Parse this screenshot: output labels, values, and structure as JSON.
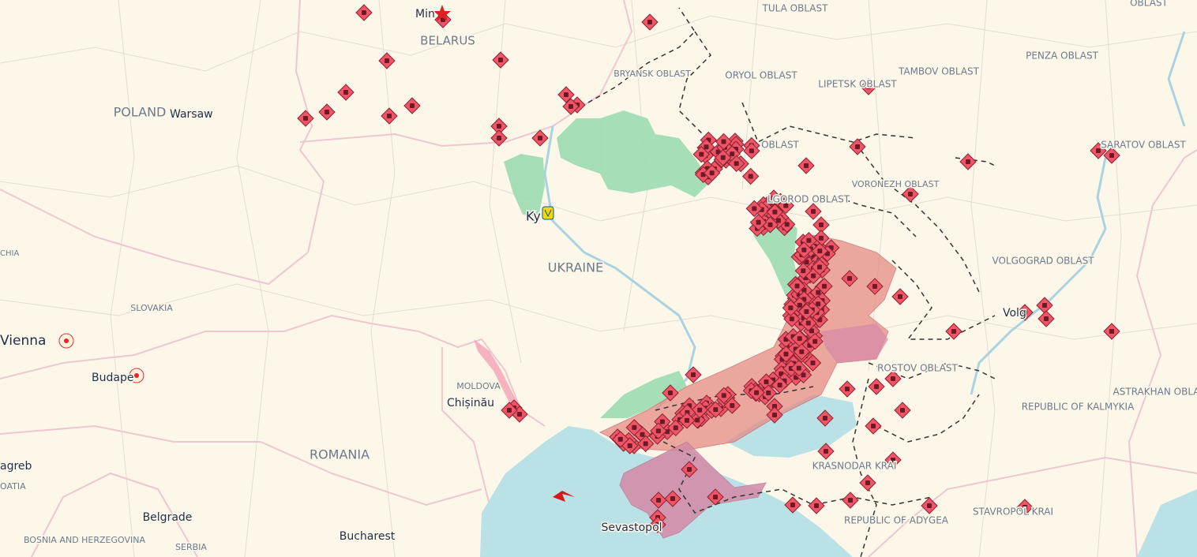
{
  "labels": [
    "TULA OBLAST",
    "Min",
    "BELARUS",
    "BRYANSK OBLAST",
    "ORYOL OBLAST",
    "LIPETSK OBLAST",
    "TAMBOV OBLAST",
    "PENZA OBLAST",
    "OBLAST",
    "POLAND",
    "Warsaw",
    "OBLAST",
    "VORONEZH OBLAST",
    "LGOROD OBLAST",
    "SARATOV OBLAST",
    "Ky",
    "UKRAINE",
    "VOLGOGRAD OBLAST",
    "Volg",
    "CHIA",
    "SLOVAKIA",
    "Vienna",
    "Budape",
    "MOLDOVA",
    "Chișinău",
    "ROSTOV OBLAST",
    "REPUBLIC OF KALMYKIA",
    "ASTRAKHAN OBLAST",
    "agreb",
    "OATIA",
    "ROMANIA",
    "KRASNODAR KRAI",
    "REPUBLIC OF ADYGEA",
    "STAVROPOL KRAI",
    "Belgrade",
    "BOSNIA AND HERZEGOVINA",
    "SERBIA",
    "Bucharest",
    "Sevastopol"
  ]
}
